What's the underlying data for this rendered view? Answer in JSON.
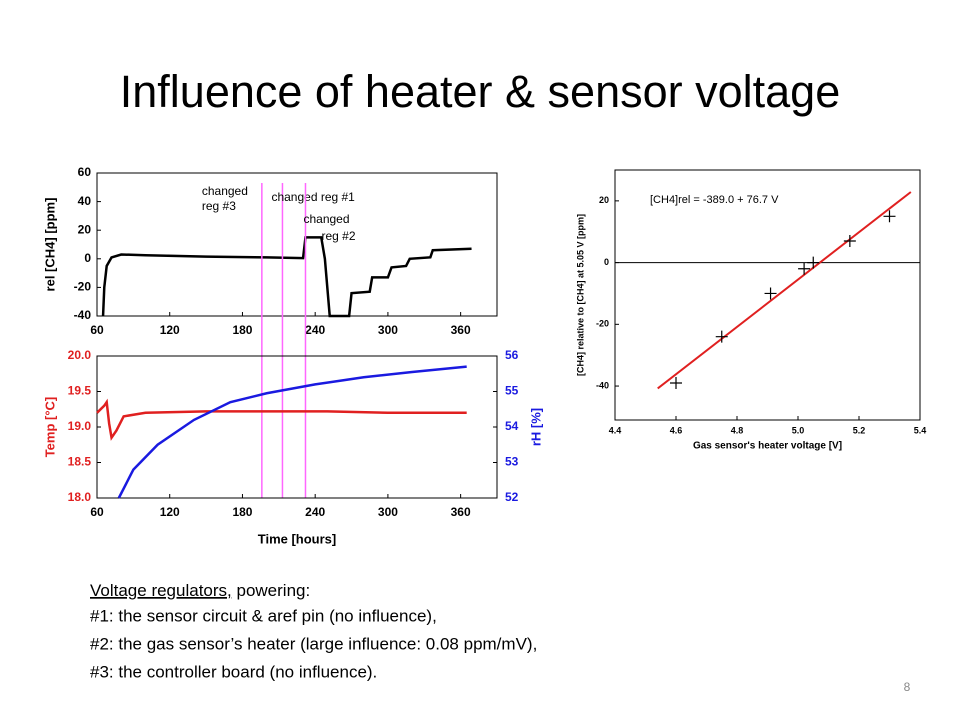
{
  "slide": {
    "title": "Influence of heater & sensor voltage",
    "notes": {
      "lead_underlined": "Voltage regulators,",
      "lead_rest": " powering:",
      "lines": [
        "#1: the sensor circuit & aref pin (no influence),",
        "#2: the gas sensor’s heater (large influence: 0.08 ppm/mV),",
        "#3: the controller board (no influence)."
      ]
    },
    "page_number": "8"
  },
  "chart_data": [
    {
      "type": "line",
      "xlim": [
        60,
        390
      ],
      "xticks": [
        60,
        120,
        180,
        240,
        300,
        360
      ],
      "ylim": [
        -40,
        60
      ],
      "yticks": [
        -40,
        -20,
        0,
        20,
        40,
        60
      ],
      "y_label": "rel [CH4] [ppm]",
      "series": [
        {
          "color": "#000000",
          "x": [
            65,
            66,
            68,
            72,
            80,
            100,
            150,
            200,
            230,
            232,
            245,
            248,
            252,
            268,
            270,
            285,
            287,
            300,
            303,
            315,
            318,
            335,
            337,
            369
          ],
          "values": [
            -40,
            -20,
            -5,
            1,
            3,
            2.5,
            1.5,
            1,
            0.5,
            15,
            15,
            0,
            -40,
            -40,
            -24,
            -23,
            -13,
            -13,
            -6,
            -5,
            0,
            1,
            6,
            7
          ]
        }
      ],
      "annotations": [
        {
          "x": 196,
          "color": "#ff66ff",
          "lines": [
            "changed",
            "reg #3"
          ]
        },
        {
          "x": 213,
          "color": "#ff66ff",
          "lines": [
            "changed reg #1"
          ]
        },
        {
          "x": 232,
          "color": "#ff66ff",
          "lines": [
            "changed",
            "reg #2"
          ]
        }
      ]
    },
    {
      "type": "line",
      "xlim": [
        60,
        390
      ],
      "xticks": [
        60,
        120,
        180,
        240,
        300,
        360
      ],
      "x_label": "Time [hours]",
      "ylim": [
        18,
        20
      ],
      "yticks": [
        {
          "value": 18,
          "label": "18.0"
        },
        18.5,
        {
          "value": 19,
          "label": "19.0"
        },
        19.5,
        {
          "value": 20,
          "label": "20.0"
        }
      ],
      "y_label": "Temp [°C]",
      "y_color": "#e02020",
      "y2lim": [
        52,
        56
      ],
      "y2ticks": [
        52,
        53,
        54,
        55,
        56
      ],
      "y2_label": "rH [%]",
      "y2_color": "#1a1ae0",
      "series": [
        {
          "color": "#e02020",
          "x": [
            60,
            66,
            68,
            70,
            72,
            76,
            82,
            100,
            150,
            200,
            250,
            300,
            365
          ],
          "values": [
            19.2,
            19.3,
            19.35,
            19.05,
            18.85,
            18.95,
            19.15,
            19.2,
            19.22,
            19.22,
            19.22,
            19.2,
            19.2
          ]
        },
        {
          "color": "#1a1ae0",
          "axis": "y2",
          "x": [
            78,
            90,
            110,
            140,
            170,
            200,
            240,
            280,
            320,
            365
          ],
          "values": [
            52,
            52.8,
            53.5,
            54.2,
            54.7,
            54.95,
            55.2,
            55.4,
            55.55,
            55.7
          ]
        }
      ]
    },
    {
      "type": "scatter",
      "xlim": [
        4.4,
        5.4
      ],
      "xticks": [
        4.4,
        4.6,
        4.8,
        {
          "value": 5,
          "label": "5.0"
        },
        5.2,
        5.4
      ],
      "x_label": "Gas sensor's heater voltage [V]",
      "ylim": [
        -51,
        30
      ],
      "yticks": [
        -40,
        -20,
        0,
        20
      ],
      "y_label": "[CH4] relative to [CH4] at 5.05 V [ppm]",
      "annotation": "[CH4]rel = -389.0 + 76.7 V",
      "hline": 0,
      "fit": {
        "slope": 76.7,
        "intercept": -389.0,
        "xlim": [
          4.54,
          5.37
        ],
        "color": "#e02020"
      },
      "series": [
        {
          "color": "#000000",
          "x": [
            4.6,
            4.75,
            4.91,
            5.02,
            5.05,
            5.17,
            5.3
          ],
          "values": [
            -39,
            -24,
            -10,
            -2,
            0,
            7,
            15
          ]
        }
      ]
    }
  ]
}
